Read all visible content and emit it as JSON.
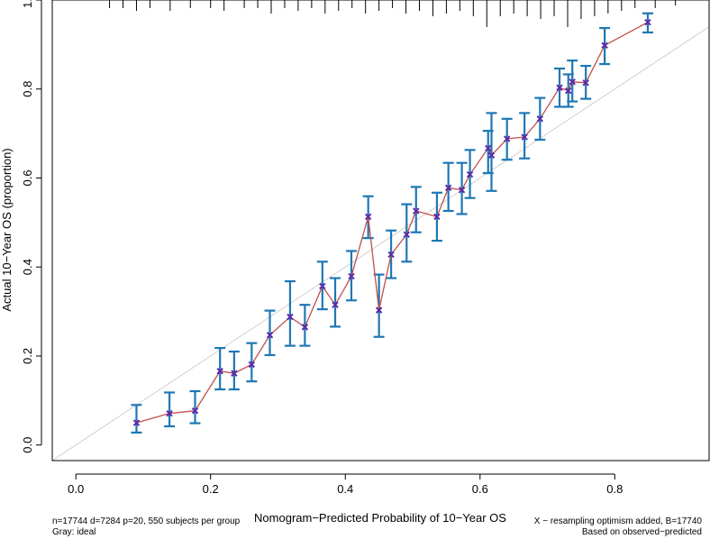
{
  "chart_data": {
    "type": "scatter",
    "title": "",
    "xlabel": "Nomogram−Predicted Probability of 10−Year OS",
    "ylabel": "Actual 10−Year OS (proportion)",
    "xlim": [
      -0.035,
      0.94
    ],
    "ylim": [
      -0.035,
      1.0
    ],
    "xticks": [
      0.0,
      0.2,
      0.4,
      0.6,
      0.8
    ],
    "xtick_labels": [
      "0.0",
      "0.2",
      "0.4",
      "0.6",
      "0.8"
    ],
    "yticks": [
      0.0,
      0.2,
      0.4,
      0.6,
      0.8,
      1.0
    ],
    "ytick_labels": [
      "0.0",
      "0.2",
      "0.4",
      "0.6",
      "0.8",
      "1.0"
    ],
    "grid": false,
    "ideal_line": {
      "x": [
        0,
        1
      ],
      "y": [
        0,
        1
      ],
      "color": "#d0d0d0"
    },
    "line_color": "#c0504d",
    "point_color": "#5b2aa8",
    "errorbar_color": "#1f77b4",
    "series": [
      {
        "points": [
          {
            "x": 0.09,
            "y": 0.05,
            "lo": 0.028,
            "hi": 0.09
          },
          {
            "x": 0.139,
            "y": 0.071,
            "lo": 0.042,
            "hi": 0.118
          },
          {
            "x": 0.177,
            "y": 0.077,
            "lo": 0.049,
            "hi": 0.121
          },
          {
            "x": 0.214,
            "y": 0.166,
            "lo": 0.125,
            "hi": 0.218
          },
          {
            "x": 0.235,
            "y": 0.161,
            "lo": 0.125,
            "hi": 0.21
          },
          {
            "x": 0.261,
            "y": 0.181,
            "lo": 0.143,
            "hi": 0.229
          },
          {
            "x": 0.288,
            "y": 0.247,
            "lo": 0.202,
            "hi": 0.302
          },
          {
            "x": 0.318,
            "y": 0.288,
            "lo": 0.223,
            "hi": 0.368
          },
          {
            "x": 0.34,
            "y": 0.265,
            "lo": 0.223,
            "hi": 0.315
          },
          {
            "x": 0.366,
            "y": 0.357,
            "lo": 0.305,
            "hi": 0.412
          },
          {
            "x": 0.385,
            "y": 0.315,
            "lo": 0.266,
            "hi": 0.375
          },
          {
            "x": 0.409,
            "y": 0.379,
            "lo": 0.325,
            "hi": 0.436
          },
          {
            "x": 0.434,
            "y": 0.513,
            "lo": 0.465,
            "hi": 0.559
          },
          {
            "x": 0.45,
            "y": 0.303,
            "lo": 0.243,
            "hi": 0.383
          },
          {
            "x": 0.468,
            "y": 0.428,
            "lo": 0.375,
            "hi": 0.482
          },
          {
            "x": 0.491,
            "y": 0.473,
            "lo": 0.412,
            "hi": 0.541
          },
          {
            "x": 0.505,
            "y": 0.526,
            "lo": 0.478,
            "hi": 0.58
          },
          {
            "x": 0.536,
            "y": 0.513,
            "lo": 0.459,
            "hi": 0.567
          },
          {
            "x": 0.553,
            "y": 0.578,
            "lo": 0.526,
            "hi": 0.634
          },
          {
            "x": 0.573,
            "y": 0.573,
            "lo": 0.519,
            "hi": 0.634
          },
          {
            "x": 0.585,
            "y": 0.608,
            "lo": 0.555,
            "hi": 0.663
          },
          {
            "x": 0.612,
            "y": 0.667,
            "lo": 0.611,
            "hi": 0.706
          },
          {
            "x": 0.617,
            "y": 0.651,
            "lo": 0.571,
            "hi": 0.746
          },
          {
            "x": 0.64,
            "y": 0.688,
            "lo": 0.641,
            "hi": 0.733
          },
          {
            "x": 0.666,
            "y": 0.692,
            "lo": 0.644,
            "hi": 0.746
          },
          {
            "x": 0.689,
            "y": 0.733,
            "lo": 0.686,
            "hi": 0.78
          },
          {
            "x": 0.718,
            "y": 0.803,
            "lo": 0.76,
            "hi": 0.846
          },
          {
            "x": 0.731,
            "y": 0.796,
            "lo": 0.76,
            "hi": 0.833
          },
          {
            "x": 0.737,
            "y": 0.816,
            "lo": 0.772,
            "hi": 0.864
          },
          {
            "x": 0.757,
            "y": 0.814,
            "lo": 0.778,
            "hi": 0.852
          },
          {
            "x": 0.785,
            "y": 0.898,
            "lo": 0.856,
            "hi": 0.937
          },
          {
            "x": 0.849,
            "y": 0.95,
            "lo": 0.927,
            "hi": 0.97
          }
        ]
      }
    ],
    "rug_ticks_top": [
      {
        "x": 0.05,
        "h": 0.3
      },
      {
        "x": 0.07,
        "h": 0.3
      },
      {
        "x": 0.09,
        "h": 0.4
      },
      {
        "x": 0.11,
        "h": 0.3
      },
      {
        "x": 0.14,
        "h": 0.4
      },
      {
        "x": 0.17,
        "h": 0.3
      },
      {
        "x": 0.2,
        "h": 0.3
      },
      {
        "x": 0.22,
        "h": 0.4
      },
      {
        "x": 0.25,
        "h": 0.3
      },
      {
        "x": 0.27,
        "h": 0.3
      },
      {
        "x": 0.29,
        "h": 0.5
      },
      {
        "x": 0.31,
        "h": 0.3
      },
      {
        "x": 0.33,
        "h": 0.4
      },
      {
        "x": 0.35,
        "h": 0.3
      },
      {
        "x": 0.37,
        "h": 0.5
      },
      {
        "x": 0.39,
        "h": 0.4
      },
      {
        "x": 0.41,
        "h": 0.3
      },
      {
        "x": 0.43,
        "h": 0.5
      },
      {
        "x": 0.45,
        "h": 0.4
      },
      {
        "x": 0.47,
        "h": 0.3
      },
      {
        "x": 0.49,
        "h": 0.5
      },
      {
        "x": 0.51,
        "h": 0.4
      },
      {
        "x": 0.53,
        "h": 0.6
      },
      {
        "x": 0.55,
        "h": 0.5
      },
      {
        "x": 0.57,
        "h": 0.4
      },
      {
        "x": 0.59,
        "h": 0.6
      },
      {
        "x": 0.61,
        "h": 1.0
      },
      {
        "x": 0.63,
        "h": 0.6
      },
      {
        "x": 0.65,
        "h": 0.5
      },
      {
        "x": 0.67,
        "h": 0.6
      },
      {
        "x": 0.69,
        "h": 0.7
      },
      {
        "x": 0.71,
        "h": 0.6
      },
      {
        "x": 0.73,
        "h": 1.0
      },
      {
        "x": 0.75,
        "h": 0.7
      },
      {
        "x": 0.77,
        "h": 0.6
      },
      {
        "x": 0.79,
        "h": 0.5
      },
      {
        "x": 0.81,
        "h": 0.4
      },
      {
        "x": 0.83,
        "h": 0.3
      },
      {
        "x": 0.86,
        "h": 0.3
      },
      {
        "x": 0.89,
        "h": 0.2
      }
    ]
  },
  "notes": {
    "bottom_left_line1": "n=17744 d=7284 p=20, 550 subjects per group",
    "bottom_left_line2": "Gray: ideal",
    "bottom_right_line1": "X − resampling optimism added, B=17740",
    "bottom_right_line2": "Based on observed−predicted"
  }
}
